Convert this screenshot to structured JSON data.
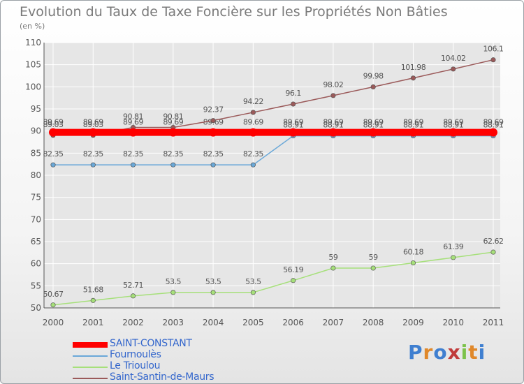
{
  "title": "Evolution du Taux de Taxe Foncière sur les Propriétés Non Bâties",
  "subtitle": "(en %)",
  "logo": "Proxiti",
  "colors": {
    "saint_constant": "#ff0000",
    "fournoules": "#6aa8d8",
    "le_trioulou": "#a6e07a",
    "saint_santin": "#9b5a5a",
    "grid": "#ffffff",
    "axis_text": "#555555"
  },
  "chart_data": {
    "type": "line",
    "title": "Evolution du Taux de Taxe Foncière sur les Propriétés Non Bâties",
    "ylabel": "(en %)",
    "xlabel": "",
    "ylim": [
      50,
      110
    ],
    "yticks": [
      50,
      55,
      60,
      65,
      70,
      75,
      80,
      85,
      90,
      95,
      100,
      105,
      110
    ],
    "categories": [
      "2000",
      "2001",
      "2002",
      "2003",
      "2004",
      "2005",
      "2006",
      "2007",
      "2008",
      "2009",
      "2010",
      "2011"
    ],
    "grid": true,
    "legend": "bottom-left",
    "series": [
      {
        "name": "SAINT-CONSTANT",
        "color": "#ff0000",
        "values": [
          89.69,
          89.69,
          89.69,
          89.69,
          89.69,
          89.69,
          89.69,
          89.69,
          89.69,
          89.69,
          89.69,
          89.69
        ],
        "labels": [
          "89.69",
          "89.69",
          "89.69",
          "89.69",
          "89.69",
          "89.69",
          "89.69",
          "89.69",
          "89.69",
          "89.69",
          "89.69",
          "89.69"
        ]
      },
      {
        "name": "Fournoulès",
        "color": "#6aa8d8",
        "values": [
          82.35,
          82.35,
          82.35,
          82.35,
          82.35,
          82.35,
          88.91,
          88.91,
          88.91,
          88.91,
          88.91,
          88.91
        ],
        "labels": [
          "82.35",
          "82.35",
          "82.35",
          "82.35",
          "82.35",
          "82.35",
          "88.91",
          "88.91",
          "88.91",
          "88.91",
          "88.91",
          "88.91"
        ]
      },
      {
        "name": "Le Trioulou",
        "color": "#a6e07a",
        "values": [
          50.67,
          51.68,
          52.71,
          53.5,
          53.5,
          53.5,
          56.19,
          59,
          59,
          60.18,
          61.39,
          62.62
        ],
        "labels": [
          "50.67",
          "51.68",
          "52.71",
          "53.5",
          "53.5",
          "53.5",
          "56.19",
          "59",
          "59",
          "60.18",
          "61.39",
          "62.62"
        ]
      },
      {
        "name": "Saint-Santin-de-Maurs",
        "color": "#9b5a5a",
        "values": [
          89.03,
          89.03,
          90.81,
          90.81,
          92.37,
          94.22,
          96.1,
          98.02,
          99.98,
          101.98,
          104.02,
          106.1
        ],
        "labels": [
          "89.03",
          "89.03",
          "90.81",
          "90.81",
          "92.37",
          "94.22",
          "96.1",
          "98.02",
          "99.98",
          "101.98",
          "104.02",
          "106.1"
        ]
      }
    ]
  }
}
